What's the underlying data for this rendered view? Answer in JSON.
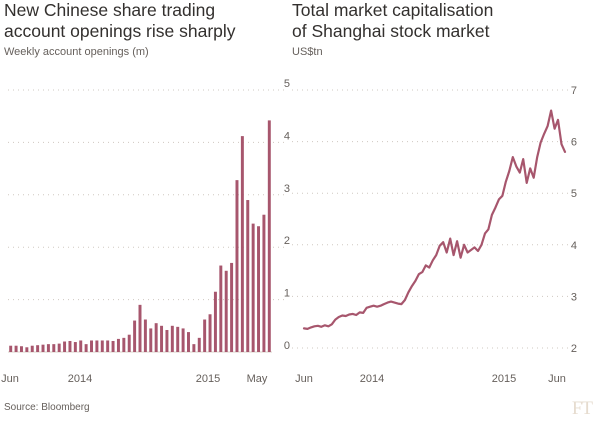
{
  "source": "Source: Bloomberg",
  "logo_text": "FT",
  "colors": {
    "series": "#a7566d",
    "grid": "#cfc8c0",
    "text": "#66605c",
    "title": "#33302e"
  },
  "chart_data": [
    {
      "type": "bar",
      "title": "New Chinese share trading\naccount openings rise sharply",
      "subtitle": "Weekly account openings (m)",
      "ylim": [
        0,
        5
      ],
      "yticks": [
        "0",
        "1",
        "2",
        "3",
        "4",
        "5"
      ],
      "xlabels": [
        "Jun",
        "2014",
        "2015",
        "May"
      ],
      "grid": "horizontal dotted",
      "values": [
        0.12,
        0.12,
        0.11,
        0.09,
        0.12,
        0.13,
        0.14,
        0.15,
        0.15,
        0.16,
        0.2,
        0.21,
        0.19,
        0.22,
        0.15,
        0.22,
        0.22,
        0.22,
        0.22,
        0.21,
        0.25,
        0.27,
        0.33,
        0.6,
        0.9,
        0.62,
        0.45,
        0.55,
        0.5,
        0.42,
        0.5,
        0.48,
        0.45,
        0.38,
        0.15,
        0.27,
        0.62,
        0.72,
        1.15,
        1.65,
        1.55,
        1.7,
        3.28,
        4.12,
        2.9,
        2.45,
        2.4,
        2.62,
        4.42
      ]
    },
    {
      "type": "line",
      "title": "Total market capitalisation\nof Shanghai stock market",
      "subtitle": "US$tn",
      "ylim": [
        2,
        7
      ],
      "yticks": [
        "2",
        "3",
        "4",
        "5",
        "6",
        "7"
      ],
      "xlabels": [
        "Jun",
        "2014",
        "2015",
        "Jun"
      ],
      "grid": "horizontal dotted",
      "series": [
        {
          "values": [
            2.38,
            2.37,
            2.4,
            2.42,
            2.43,
            2.41,
            2.44,
            2.42,
            2.46,
            2.55,
            2.6,
            2.63,
            2.62,
            2.65,
            2.66,
            2.64,
            2.69,
            2.68,
            2.78,
            2.8,
            2.82,
            2.8,
            2.82,
            2.85,
            2.88,
            2.9,
            2.88,
            2.86,
            2.85,
            2.93,
            3.08,
            3.2,
            3.3,
            3.43,
            3.47,
            3.6,
            3.56,
            3.7,
            3.8,
            3.98,
            4.05,
            3.85,
            4.12,
            3.8,
            4.07,
            3.75,
            4.0,
            3.85,
            3.9,
            3.95,
            3.88,
            4.0,
            4.22,
            4.3,
            4.58,
            4.72,
            4.88,
            4.95,
            5.22,
            5.43,
            5.7,
            5.52,
            5.4,
            5.66,
            5.2,
            5.48,
            5.3,
            5.7,
            5.98,
            6.15,
            6.3,
            6.6,
            6.25,
            6.42,
            5.95,
            5.8
          ]
        }
      ]
    }
  ]
}
